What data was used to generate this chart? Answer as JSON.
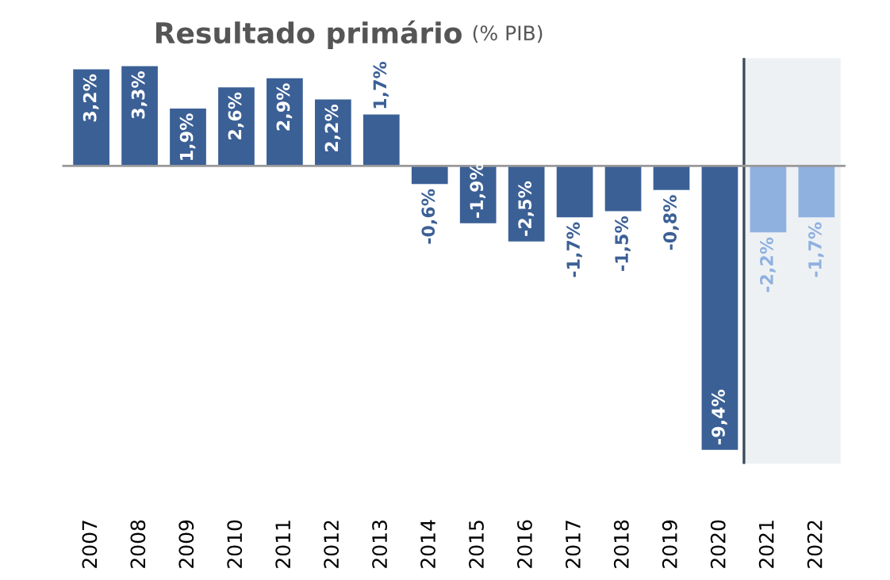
{
  "chart_data": {
    "type": "bar",
    "title": "Resultado primário",
    "subtitle": "(% PIB)",
    "categories": [
      "2007",
      "2008",
      "2009",
      "2010",
      "2011",
      "2012",
      "2013",
      "2014",
      "2015",
      "2016",
      "2017",
      "2018",
      "2019",
      "2020",
      "2021",
      "2022"
    ],
    "values": [
      3.2,
      3.3,
      1.9,
      2.6,
      2.9,
      2.2,
      1.7,
      -0.6,
      -1.9,
      -2.5,
      -1.7,
      -1.5,
      -0.8,
      -9.4,
      -2.2,
      -1.7
    ],
    "colors": [
      "#3b6096",
      "#3b6096",
      "#3b6096",
      "#3b6096",
      "#3b6096",
      "#3b6096",
      "#3b6096",
      "#3b6096",
      "#3b6096",
      "#3b6096",
      "#3b6096",
      "#3b6096",
      "#3b6096",
      "#3b6096",
      "#8fb1e0",
      "#8fb1e0"
    ],
    "value_labels": [
      "3,2%",
      "3,3%",
      "1,9%",
      "2,6%",
      "2,9%",
      "2,2%",
      "1,7%",
      "-0,6%",
      "-1,9%",
      "-2,5%",
      "-1,7%",
      "-1,5%",
      "-0,8%",
      "-9,4%",
      "-2,2%",
      "-1,7%"
    ],
    "bands": [
      {
        "axis": "x",
        "from": "2021",
        "to": "2022",
        "color": "#eef1f4"
      }
    ],
    "grid": false,
    "legend": false
  }
}
